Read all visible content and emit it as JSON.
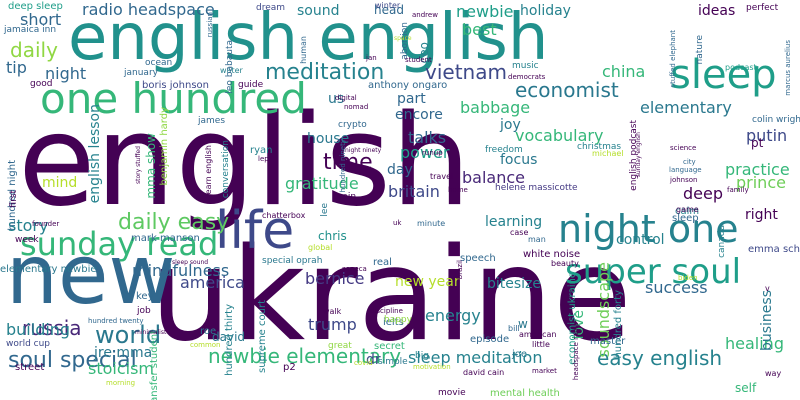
{
  "words": [
    {
      "text": "english",
      "color": "#440154"
    },
    {
      "text": "ukraine",
      "color": "#440154"
    },
    {
      "text": "english english",
      "color": "#21918c"
    },
    {
      "text": "new",
      "color": "#31688e"
    },
    {
      "text": "life",
      "color": "#3e4989"
    },
    {
      "text": "one hundred",
      "color": "#35b779"
    },
    {
      "text": "sleep",
      "color": "#1f9e89"
    },
    {
      "text": "night one",
      "color": "#26828e"
    },
    {
      "text": "super soul",
      "color": "#1f9e89"
    },
    {
      "text": "sunday read",
      "color": "#35b779"
    },
    {
      "text": "meditation",
      "color": "#26828e"
    },
    {
      "text": "vietnam",
      "color": "#3e4989"
    },
    {
      "text": "economist",
      "color": "#2a788e"
    },
    {
      "text": "balance",
      "color": "#482878"
    },
    {
      "text": "daily easy",
      "color": "#5ec962"
    },
    {
      "text": "soul special",
      "color": "#31688e"
    },
    {
      "text": "newbie elementary",
      "color": "#35b779"
    },
    {
      "text": "easy english",
      "color": "#26828e"
    },
    {
      "text": "sleep meditation",
      "color": "#26828e"
    },
    {
      "text": "world",
      "color": "#2a788e"
    },
    {
      "text": "russia",
      "color": "#482878"
    },
    {
      "text": "time",
      "color": "#440154"
    },
    {
      "text": "power",
      "color": "#1f9e89"
    },
    {
      "text": "talks",
      "color": "#31688e"
    },
    {
      "text": "america",
      "color": "#3e4989"
    },
    {
      "text": "building",
      "color": "#26828e"
    },
    {
      "text": "daily",
      "color": "#90d743"
    },
    {
      "text": "story",
      "color": "#26828e"
    },
    {
      "text": "vocabulary",
      "color": "#35b779"
    },
    {
      "text": "babbage",
      "color": "#35b779"
    },
    {
      "text": "elementary",
      "color": "#2a788e"
    },
    {
      "text": "radio headspace",
      "color": "#31688e"
    },
    {
      "text": "newbie",
      "color": "#1f9e89"
    },
    {
      "text": "short",
      "color": "#31688e"
    },
    {
      "text": "night",
      "color": "#31688e"
    },
    {
      "text": "tip",
      "color": "#31688e"
    },
    {
      "text": "mindfulness",
      "color": "#31688e"
    },
    {
      "text": "bernice",
      "color": "#443983"
    },
    {
      "text": "trump",
      "color": "#3e4989"
    },
    {
      "text": "stoicism",
      "color": "#35b779"
    },
    {
      "text": "energy",
      "color": "#26828e"
    },
    {
      "text": "healing",
      "color": "#35b779"
    },
    {
      "text": "putin",
      "color": "#3e4989"
    },
    {
      "text": "prince",
      "color": "#6ece58"
    },
    {
      "text": "practice",
      "color": "#35b779"
    },
    {
      "text": "success",
      "color": "#31688e"
    },
    {
      "text": "gratitude",
      "color": "#35b779"
    },
    {
      "text": "britain",
      "color": "#3e4989"
    },
    {
      "text": "china",
      "color": "#35b779"
    },
    {
      "text": "best",
      "color": "#35b779"
    },
    {
      "text": "sound",
      "color": "#26828e"
    },
    {
      "text": "holiday",
      "color": "#26828e"
    },
    {
      "text": "ideas",
      "color": "#440154"
    },
    {
      "text": "deep",
      "color": "#440154"
    },
    {
      "text": "right",
      "color": "#440154"
    },
    {
      "text": "learning",
      "color": "#26828e"
    },
    {
      "text": "focus",
      "color": "#2a788e"
    },
    {
      "text": "house",
      "color": "#2a788e"
    },
    {
      "text": "joy",
      "color": "#2a788e"
    },
    {
      "text": "part",
      "color": "#31688e"
    },
    {
      "text": "us",
      "color": "#2a788e"
    },
    {
      "text": "encore",
      "color": "#31688e"
    },
    {
      "text": "day",
      "color": "#31688e"
    },
    {
      "text": "mind",
      "color": "#b5de2b"
    },
    {
      "text": "new year",
      "color": "#b5de2b"
    },
    {
      "text": "control",
      "color": "#26828e"
    },
    {
      "text": "bitesize",
      "color": "#26828e"
    },
    {
      "text": "jre mma",
      "color": "#2a788e"
    },
    {
      "text": "dr",
      "color": "#3e4989"
    },
    {
      "text": "secret",
      "color": "#35b779"
    },
    {
      "text": "soundscape",
      "color": "#6ece58"
    },
    {
      "text": "english lesson",
      "color": "#26828e"
    },
    {
      "text": "mma show",
      "color": "#35b779"
    },
    {
      "text": "episode",
      "color": "#31688e"
    },
    {
      "text": "business",
      "color": "#2a788e"
    },
    {
      "text": "chris",
      "color": "#21918c"
    },
    {
      "text": "love",
      "color": "#35b779"
    },
    {
      "text": "david",
      "color": "#2a788e"
    },
    {
      "text": "pt",
      "color": "#440154"
    },
    {
      "text": "head",
      "color": "#31688e"
    },
    {
      "text": "w",
      "color": "#2a788e"
    },
    {
      "text": "self",
      "color": "#35b779"
    },
    {
      "text": "master",
      "color": "#31688e"
    },
    {
      "text": "sleep",
      "color": "#31688e"
    },
    {
      "text": "deep sleep",
      "color": "#1f9e89"
    },
    {
      "text": "colin wright",
      "color": "#31688e"
    },
    {
      "text": "mark manson",
      "color": "#31688e"
    },
    {
      "text": "white noise",
      "color": "#440154"
    },
    {
      "text": "hundred night",
      "color": "#31688e"
    },
    {
      "text": "benjamin hardy",
      "color": "#8fd744"
    },
    {
      "text": "boris johnson",
      "color": "#3e4989"
    },
    {
      "text": "anthony ongaro",
      "color": "#31688e"
    },
    {
      "text": "helene massicotte",
      "color": "#443983"
    },
    {
      "text": "emma scheib",
      "color": "#3e4989"
    },
    {
      "text": "special oprah",
      "color": "#2a788e"
    },
    {
      "text": "supreme court",
      "color": "#26828e"
    },
    {
      "text": "hundred thirty",
      "color": "#26828e"
    },
    {
      "text": "hundred forty",
      "color": "#26828e"
    },
    {
      "text": "economist ukraine",
      "color": "#1f9e89"
    },
    {
      "text": "english podcast",
      "color": "#440154"
    },
    {
      "text": "transfer student",
      "color": "#35b779"
    },
    {
      "text": "elementary newbie",
      "color": "#2a788e"
    },
    {
      "text": "hundred twenty",
      "color": "#31688e"
    },
    {
      "text": "world cup",
      "color": "#3e4989"
    },
    {
      "text": "mental health",
      "color": "#6ece58"
    },
    {
      "text": "big",
      "color": "#26828e"
    },
    {
      "text": "joe",
      "color": "#2a788e"
    },
    {
      "text": "key",
      "color": "#31688e"
    },
    {
      "text": "roe",
      "color": "#2a788e"
    },
    {
      "text": "ielts",
      "color": "#31688e"
    },
    {
      "text": "happy",
      "color": "#90d743"
    },
    {
      "text": "great",
      "color": "#90d743"
    },
    {
      "text": "real",
      "color": "#31688e"
    },
    {
      "text": "speech",
      "color": "#31688e"
    },
    {
      "text": "brain",
      "color": "#440154"
    },
    {
      "text": "lee",
      "color": "#2a788e"
    },
    {
      "text": "ryan",
      "color": "#26828e"
    },
    {
      "text": "james",
      "color": "#31688e"
    },
    {
      "text": "crypto",
      "color": "#31688e"
    },
    {
      "text": "guide",
      "color": "#440154"
    },
    {
      "text": "dream",
      "color": "#3e4989"
    },
    {
      "text": "winter",
      "color": "#3e4989"
    },
    {
      "text": "walk",
      "color": "#440154"
    },
    {
      "text": "simple",
      "color": "#2a788e"
    },
    {
      "text": "movie",
      "color": "#440154"
    },
    {
      "text": "ocean",
      "color": "#31688e"
    },
    {
      "text": "january",
      "color": "#31688e"
    },
    {
      "text": "good",
      "color": "#440154"
    },
    {
      "text": "week",
      "color": "#440154"
    },
    {
      "text": "job",
      "color": "#440154"
    },
    {
      "text": "first",
      "color": "#440154"
    },
    {
      "text": "water",
      "color": "#26828e"
    },
    {
      "text": "ceo",
      "color": "#26828e"
    },
    {
      "text": "music",
      "color": "#26828e"
    },
    {
      "text": "freedom",
      "color": "#26828e"
    },
    {
      "text": "christmas",
      "color": "#26828e"
    },
    {
      "text": "case",
      "color": "#440154"
    },
    {
      "text": "man",
      "color": "#31688e"
    },
    {
      "text": "bill",
      "color": "#31688e"
    },
    {
      "text": "calm",
      "color": "#26828e"
    },
    {
      "text": "minute",
      "color": "#31688e"
    },
    {
      "text": "canada",
      "color": "#26828e"
    },
    {
      "text": "game",
      "color": "#440154"
    },
    {
      "text": "beauty",
      "color": "#440154"
    },
    {
      "text": "american",
      "color": "#440154"
    },
    {
      "text": "little",
      "color": "#440154"
    },
    {
      "text": "p2",
      "color": "#440154"
    },
    {
      "text": "street",
      "color": "#440154"
    },
    {
      "text": "david cain",
      "color": "#440154"
    },
    {
      "text": "chatterbox",
      "color": "#440154"
    },
    {
      "text": "conversation",
      "color": "#26828e"
    },
    {
      "text": "learn english",
      "color": "#440154"
    },
    {
      "text": "jamaica inn",
      "color": "#31688e"
    },
    {
      "text": "perfect",
      "color": "#440154"
    },
    {
      "text": "human",
      "color": "#31688e"
    },
    {
      "text": "abortion",
      "color": "#31688e"
    },
    {
      "text": "nature",
      "color": "#31688e"
    },
    {
      "text": "podcast",
      "color": "#1f9e89"
    },
    {
      "text": "leo babauta",
      "color": "#31688e"
    },
    {
      "text": "stuffed elephant",
      "color": "#31688e"
    },
    {
      "text": "russian",
      "color": "#31688e"
    },
    {
      "text": "marcus aurelius",
      "color": "#31688e"
    },
    {
      "text": "hundred ninety",
      "color": "#31688e"
    },
    {
      "text": "travel",
      "color": "#440154"
    },
    {
      "text": "home",
      "color": "#440154"
    },
    {
      "text": "runup",
      "color": "#440154"
    },
    {
      "text": "science",
      "color": "#440154"
    },
    {
      "text": "city",
      "color": "#31688e"
    },
    {
      "text": "language",
      "color": "#31688e"
    },
    {
      "text": "family",
      "color": "#440154"
    },
    {
      "text": "biden",
      "color": "#b5de2b"
    },
    {
      "text": "founder",
      "color": "#440154"
    },
    {
      "text": "global",
      "color": "#b5de2b"
    },
    {
      "text": "discipline",
      "color": "#440154"
    },
    {
      "text": "michael",
      "color": "#b5de2b"
    },
    {
      "text": "covid",
      "color": "#b5de2b"
    },
    {
      "text": "motivation",
      "color": "#b5de2b"
    },
    {
      "text": "way",
      "color": "#440154"
    },
    {
      "text": "v",
      "color": "#440154"
    },
    {
      "text": "market",
      "color": "#440154"
    },
    {
      "text": "common",
      "color": "#b5de2b"
    },
    {
      "text": "seneca",
      "color": "#440154"
    },
    {
      "text": "student",
      "color": "#440154"
    },
    {
      "text": "digital",
      "color": "#440154"
    },
    {
      "text": "nomad",
      "color": "#440154"
    },
    {
      "text": "andrew",
      "color": "#440154"
    },
    {
      "text": "jan",
      "color": "#440154"
    },
    {
      "text": "democrats",
      "color": "#440154"
    },
    {
      "text": "lep",
      "color": "#440154"
    },
    {
      "text": "uk",
      "color": "#440154"
    },
    {
      "text": "brazil",
      "color": "#440154"
    },
    {
      "text": "johnson",
      "color": "#440154"
    },
    {
      "text": "headspace radio",
      "color": "#440154"
    },
    {
      "text": "night ninety",
      "color": "#440154"
    },
    {
      "text": "story stuffed",
      "color": "#440154"
    },
    {
      "text": "space",
      "color": "#b5de2b"
    },
    {
      "text": "minimalist",
      "color": "#440154"
    },
    {
      "text": "sunday english",
      "color": "#440154"
    },
    {
      "text": "sleep sound",
      "color": "#440154"
    },
    {
      "text": "morning",
      "color": "#b5de2b"
    }
  ]
}
